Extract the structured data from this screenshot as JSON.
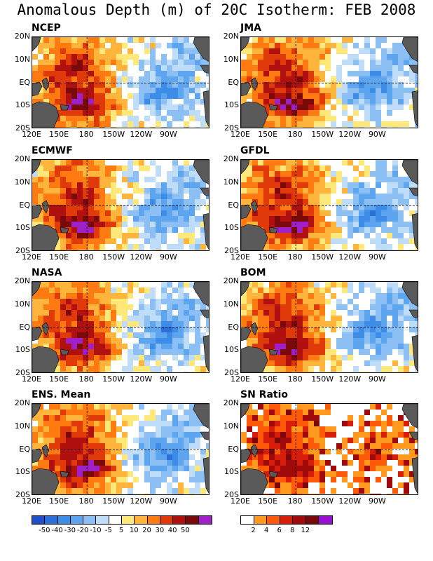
{
  "title": "Anomalous Depth (m) of 20C Isotherm: FEB 2008",
  "y_ticks": [
    "20N",
    "10N",
    "EQ",
    "10S",
    "20S"
  ],
  "x_ticks": [
    "120E",
    "150E",
    "180",
    "150W",
    "120W",
    "90W"
  ],
  "panels": [
    {
      "name": "NCEP",
      "kind": "anom"
    },
    {
      "name": "JMA",
      "kind": "anom"
    },
    {
      "name": "ECMWF",
      "kind": "anom"
    },
    {
      "name": "GFDL",
      "kind": "anom"
    },
    {
      "name": "NASA",
      "kind": "anom"
    },
    {
      "name": "BOM",
      "kind": "anom"
    },
    {
      "name": "ENS. Mean",
      "kind": "anom"
    },
    {
      "name": "SN Ratio",
      "kind": "snr"
    }
  ],
  "colorbar_anomaly": {
    "labels": [
      "-50",
      "-40",
      "-30",
      "-20",
      "-10",
      "-5",
      "5",
      "10",
      "20",
      "30",
      "40",
      "50"
    ],
    "colors": [
      "#1f4fc8",
      "#2c6fd8",
      "#3d8ce8",
      "#5ea5f0",
      "#8cc0f4",
      "#bfdcf8",
      "#ffffff",
      "#ffe87a",
      "#ffb43c",
      "#ff7a10",
      "#e03a0a",
      "#b01010",
      "#7a0a0a",
      "#a020c8"
    ]
  },
  "colorbar_snr": {
    "labels": [
      "2",
      "4",
      "6",
      "8",
      "12"
    ],
    "colors": [
      "#ffffff",
      "#ff9a1e",
      "#ff5a0a",
      "#d81e0a",
      "#a00a0a",
      "#7a0808",
      "#9a10d0"
    ]
  },
  "colors": {
    "land": "#5a5a5a",
    "background": "#ffffff"
  }
}
